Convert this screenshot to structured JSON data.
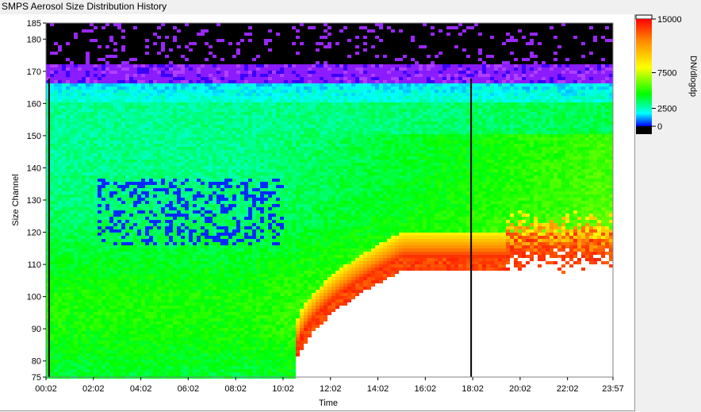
{
  "window": {
    "title": "SMPS Aerosol Size Distribution History"
  },
  "chart_data": {
    "type": "heatmap",
    "title": "SMPS Aerosol Size Distribution History",
    "xlabel": "Time",
    "ylabel": "Size Channel",
    "x_tick_labels": [
      "00:02",
      "02:02",
      "04:02",
      "06:02",
      "08:02",
      "10:02",
      "12:02",
      "14:02",
      "16:02",
      "18:02",
      "20:02",
      "22:02",
      "23:57"
    ],
    "x_range": [
      "00:02",
      "23:57"
    ],
    "y_ticks": [
      75,
      80,
      90,
      100,
      110,
      120,
      130,
      140,
      150,
      160,
      170,
      180,
      185
    ],
    "ylim": [
      75,
      185
    ],
    "colorbar": {
      "label": "DN/dlogdp",
      "ticks": [
        0,
        2500,
        7500,
        15000
      ],
      "tick_labels": [
        "0",
        "2500",
        "7500",
        "15000"
      ],
      "range": [
        0,
        15000
      ],
      "colors": {
        "below_min": "#000000",
        "low": "#0000ff",
        "mid_low": "#00ffff",
        "mid": "#00ff00",
        "mid_high": "#ffff00",
        "high": "#ff0000",
        "above_max": "#ffffff"
      }
    },
    "vertical_markers_time": [
      "00:10",
      "17:58"
    ],
    "regions": [
      {
        "desc": "above-max (white) growth region",
        "time": [
          "10:30",
          "19:30"
        ],
        "channel_top": 108
      },
      {
        "desc": "above-max (white) second region",
        "time": [
          "19:30",
          "23:57"
        ],
        "channel_top": 113
      },
      {
        "desc": "low-count band",
        "time": [
          "02:10",
          "10:00"
        ],
        "channel": [
          116,
          137
        ]
      },
      {
        "desc": "noise band (black/purple)",
        "channel": [
          168,
          185
        ]
      }
    ]
  }
}
